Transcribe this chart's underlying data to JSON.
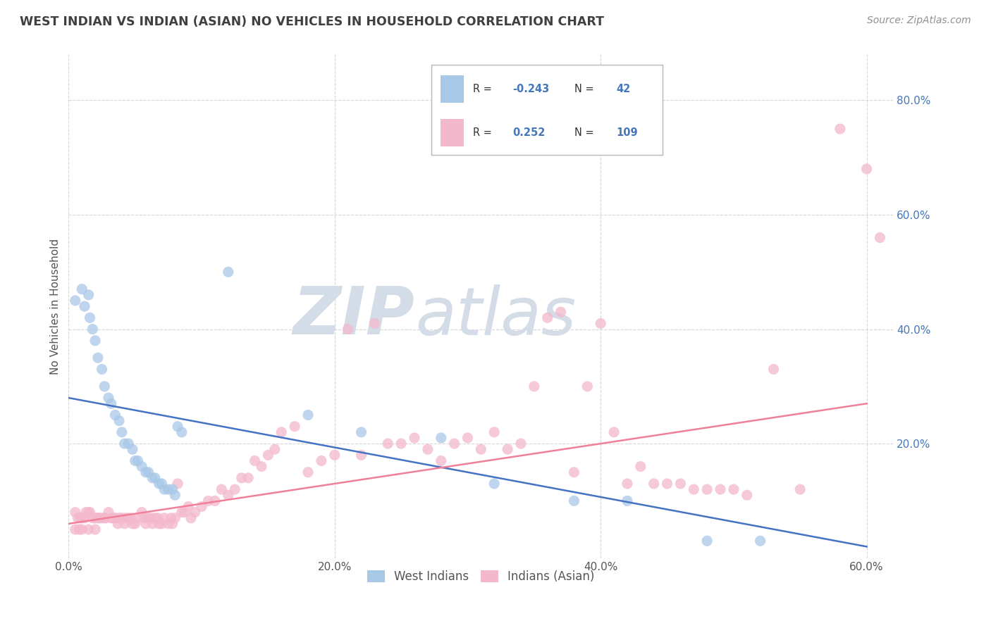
{
  "title": "WEST INDIAN VS INDIAN (ASIAN) NO VEHICLES IN HOUSEHOLD CORRELATION CHART",
  "source_text": "Source: ZipAtlas.com",
  "ylabel": "No Vehicles in Household",
  "xlim": [
    0.0,
    0.62
  ],
  "ylim": [
    0.0,
    0.88
  ],
  "xtick_labels": [
    "0.0%",
    "20.0%",
    "40.0%",
    "60.0%"
  ],
  "xtick_positions": [
    0.0,
    0.2,
    0.4,
    0.6
  ],
  "ytick_labels": [
    "20.0%",
    "40.0%",
    "60.0%",
    "80.0%"
  ],
  "ytick_positions": [
    0.2,
    0.4,
    0.6,
    0.8
  ],
  "color_blue": "#A8C8E8",
  "color_pink": "#F4B8CC",
  "color_blue_line": "#4472C4",
  "color_pink_line": "#F08098",
  "color_title": "#404040",
  "color_source": "#909090",
  "color_grid": "#CCCCCC",
  "watermark_color": "#D4DCE8",
  "blue_scatter_x": [
    0.005,
    0.01,
    0.012,
    0.015,
    0.016,
    0.018,
    0.02,
    0.022,
    0.025,
    0.027,
    0.03,
    0.032,
    0.035,
    0.038,
    0.04,
    0.042,
    0.045,
    0.048,
    0.05,
    0.052,
    0.055,
    0.058,
    0.06,
    0.063,
    0.065,
    0.068,
    0.07,
    0.072,
    0.075,
    0.078,
    0.08,
    0.082,
    0.085,
    0.12,
    0.18,
    0.22,
    0.28,
    0.32,
    0.38,
    0.42,
    0.48,
    0.52
  ],
  "blue_scatter_y": [
    0.45,
    0.47,
    0.44,
    0.46,
    0.42,
    0.4,
    0.38,
    0.35,
    0.33,
    0.3,
    0.28,
    0.27,
    0.25,
    0.24,
    0.22,
    0.2,
    0.2,
    0.19,
    0.17,
    0.17,
    0.16,
    0.15,
    0.15,
    0.14,
    0.14,
    0.13,
    0.13,
    0.12,
    0.12,
    0.12,
    0.11,
    0.23,
    0.22,
    0.5,
    0.25,
    0.22,
    0.21,
    0.13,
    0.1,
    0.1,
    0.03,
    0.03
  ],
  "pink_scatter_x": [
    0.005,
    0.007,
    0.009,
    0.01,
    0.012,
    0.013,
    0.015,
    0.016,
    0.018,
    0.02,
    0.022,
    0.023,
    0.025,
    0.027,
    0.028,
    0.03,
    0.032,
    0.033,
    0.035,
    0.037,
    0.038,
    0.04,
    0.042,
    0.043,
    0.045,
    0.047,
    0.048,
    0.05,
    0.052,
    0.055,
    0.057,
    0.058,
    0.06,
    0.062,
    0.063,
    0.065,
    0.067,
    0.068,
    0.07,
    0.072,
    0.075,
    0.077,
    0.078,
    0.08,
    0.082,
    0.085,
    0.087,
    0.09,
    0.092,
    0.095,
    0.1,
    0.105,
    0.11,
    0.115,
    0.12,
    0.125,
    0.13,
    0.135,
    0.14,
    0.145,
    0.15,
    0.155,
    0.16,
    0.17,
    0.18,
    0.19,
    0.2,
    0.21,
    0.22,
    0.23,
    0.24,
    0.25,
    0.26,
    0.27,
    0.28,
    0.29,
    0.3,
    0.31,
    0.32,
    0.33,
    0.34,
    0.35,
    0.36,
    0.37,
    0.38,
    0.39,
    0.4,
    0.41,
    0.42,
    0.43,
    0.44,
    0.45,
    0.46,
    0.47,
    0.48,
    0.49,
    0.5,
    0.51,
    0.53,
    0.55,
    0.58,
    0.6,
    0.61,
    0.005,
    0.008,
    0.01,
    0.015,
    0.02
  ],
  "pink_scatter_y": [
    0.08,
    0.07,
    0.07,
    0.07,
    0.07,
    0.08,
    0.08,
    0.08,
    0.07,
    0.07,
    0.07,
    0.07,
    0.07,
    0.07,
    0.07,
    0.08,
    0.07,
    0.07,
    0.07,
    0.06,
    0.07,
    0.07,
    0.06,
    0.07,
    0.07,
    0.07,
    0.06,
    0.06,
    0.07,
    0.08,
    0.07,
    0.06,
    0.07,
    0.07,
    0.06,
    0.07,
    0.07,
    0.06,
    0.06,
    0.07,
    0.06,
    0.07,
    0.06,
    0.07,
    0.13,
    0.08,
    0.08,
    0.09,
    0.07,
    0.08,
    0.09,
    0.1,
    0.1,
    0.12,
    0.11,
    0.12,
    0.14,
    0.14,
    0.17,
    0.16,
    0.18,
    0.19,
    0.22,
    0.23,
    0.15,
    0.17,
    0.18,
    0.4,
    0.18,
    0.41,
    0.2,
    0.2,
    0.21,
    0.19,
    0.17,
    0.2,
    0.21,
    0.19,
    0.22,
    0.19,
    0.2,
    0.3,
    0.42,
    0.43,
    0.15,
    0.3,
    0.41,
    0.22,
    0.13,
    0.16,
    0.13,
    0.13,
    0.13,
    0.12,
    0.12,
    0.12,
    0.12,
    0.11,
    0.33,
    0.12,
    0.75,
    0.68,
    0.56,
    0.05,
    0.05,
    0.05,
    0.05,
    0.05
  ],
  "blue_line_x0": 0.0,
  "blue_line_y0": 0.28,
  "blue_line_x1": 0.6,
  "blue_line_y1": 0.02,
  "pink_line_x0": 0.0,
  "pink_line_y0": 0.06,
  "pink_line_x1": 0.6,
  "pink_line_y1": 0.27
}
